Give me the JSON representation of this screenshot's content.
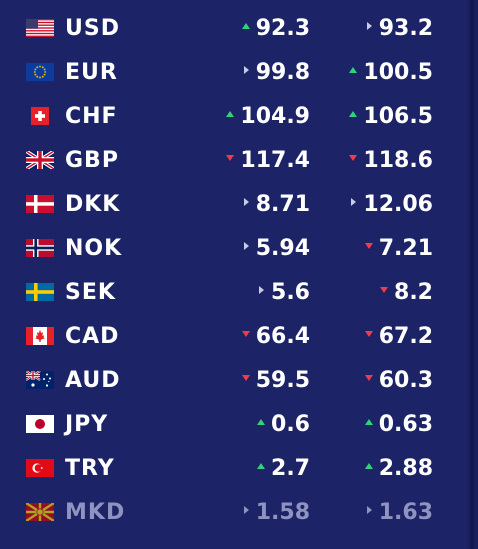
{
  "colors": {
    "background": "#1d2367",
    "up": "#2fd37a",
    "down": "#f03c46",
    "same": "#c9cbe6",
    "text": "#ffffff",
    "dim": "#8f93bf"
  },
  "rows": [
    {
      "code": "USD",
      "flag": "us-flag-icon",
      "buy": "92.3",
      "buy_trend": "up",
      "sell": "93.2",
      "sell_trend": "same"
    },
    {
      "code": "EUR",
      "flag": "eu-flag-icon",
      "buy": "99.8",
      "buy_trend": "same",
      "sell": "100.5",
      "sell_trend": "up"
    },
    {
      "code": "CHF",
      "flag": "ch-flag-icon",
      "buy": "104.9",
      "buy_trend": "up",
      "sell": "106.5",
      "sell_trend": "up"
    },
    {
      "code": "GBP",
      "flag": "gb-flag-icon",
      "buy": "117.4",
      "buy_trend": "down",
      "sell": "118.6",
      "sell_trend": "down"
    },
    {
      "code": "DKK",
      "flag": "dk-flag-icon",
      "buy": "8.71",
      "buy_trend": "same",
      "sell": "12.06",
      "sell_trend": "same"
    },
    {
      "code": "NOK",
      "flag": "no-flag-icon",
      "buy": "5.94",
      "buy_trend": "same",
      "sell": "7.21",
      "sell_trend": "down"
    },
    {
      "code": "SEK",
      "flag": "se-flag-icon",
      "buy": "5.6",
      "buy_trend": "same",
      "sell": "8.2",
      "sell_trend": "down"
    },
    {
      "code": "CAD",
      "flag": "ca-flag-icon",
      "buy": "66.4",
      "buy_trend": "down",
      "sell": "67.2",
      "sell_trend": "down"
    },
    {
      "code": "AUD",
      "flag": "au-flag-icon",
      "buy": "59.5",
      "buy_trend": "down",
      "sell": "60.3",
      "sell_trend": "down"
    },
    {
      "code": "JPY",
      "flag": "jp-flag-icon",
      "buy": "0.6",
      "buy_trend": "up",
      "sell": "0.63",
      "sell_trend": "up"
    },
    {
      "code": "TRY",
      "flag": "tr-flag-icon",
      "buy": "2.7",
      "buy_trend": "up",
      "sell": "2.88",
      "sell_trend": "up"
    },
    {
      "code": "MKD",
      "flag": "mk-flag-icon",
      "buy": "1.58",
      "buy_trend": "same",
      "sell": "1.63",
      "sell_trend": "same"
    }
  ]
}
